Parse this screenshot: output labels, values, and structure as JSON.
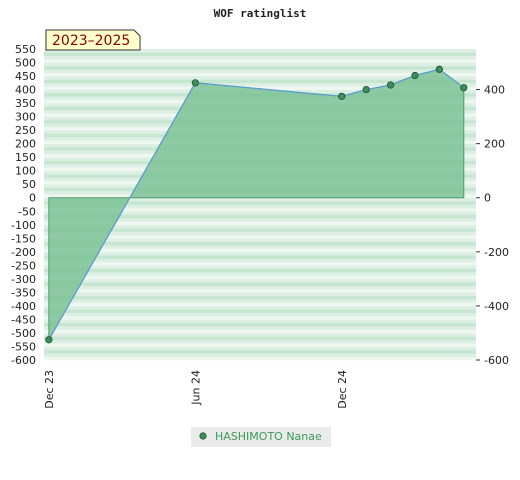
{
  "chart_data": {
    "type": "area",
    "title": "WOF ratinglist",
    "badge": "2023–2025",
    "left_axis": {
      "min": -600,
      "max": 550,
      "step": 50
    },
    "right_axis": {
      "ticks": [
        400,
        200,
        0,
        -200,
        -400,
        -600
      ]
    },
    "x_ticks": [
      "Dec 23",
      "Jun 24",
      "Dec 24"
    ],
    "x_tick_months": [
      0,
      6,
      12
    ],
    "x_range_months": [
      -0.2,
      17.5
    ],
    "series": [
      {
        "name": "HASHIMOTO Nanae",
        "x_months": [
          0,
          6,
          12,
          13,
          14,
          15,
          16,
          17
        ],
        "values": [
          -525,
          425,
          375,
          400,
          417,
          452,
          475,
          407
        ]
      }
    ],
    "grid": true,
    "legend_position": "bottom",
    "colors": {
      "fill": "#7cc296",
      "line": "#5b9bd5",
      "marker": "#3c8f5a",
      "badge_bg": "#ffffcc"
    }
  }
}
